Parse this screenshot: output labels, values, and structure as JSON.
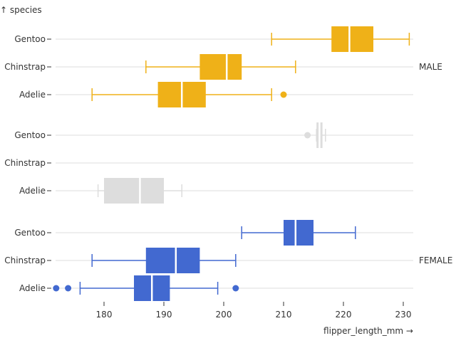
{
  "chart_data": {
    "type": "box",
    "ylabel": "↑ species",
    "xlabel": "flipper_length_mm →",
    "xlim": [
      171,
      231.5
    ],
    "xticks": [
      180,
      190,
      200,
      210,
      220,
      230
    ],
    "grid": true,
    "colors": {
      "MALE": "#efb118",
      "": "#dddddd",
      "FEMALE": "#4269d0"
    },
    "facets": [
      {
        "sex": "MALE",
        "label": "MALE",
        "boxes": [
          {
            "species": "Gentoo",
            "min": 208,
            "q1": 218,
            "median": 221,
            "q3": 225,
            "max": 231,
            "outliers": []
          },
          {
            "species": "Chinstrap",
            "min": 187,
            "q1": 196,
            "median": 200.5,
            "q3": 203,
            "max": 212,
            "outliers": []
          },
          {
            "species": "Adelie",
            "min": 178,
            "q1": 189,
            "median": 193,
            "q3": 197,
            "max": 208,
            "outliers": [
              210
            ]
          }
        ]
      },
      {
        "sex": "",
        "label": "",
        "boxes": [
          {
            "species": "Gentoo",
            "min": 215.5,
            "q1": 215.5,
            "median": 216,
            "q3": 216.5,
            "max": 217,
            "outliers": [
              214
            ]
          },
          {
            "species": "Chinstrap",
            "min": null,
            "q1": null,
            "median": null,
            "q3": null,
            "max": null,
            "outliers": []
          },
          {
            "species": "Adelie",
            "min": 179,
            "q1": 180,
            "median": 186,
            "q3": 190,
            "max": 193,
            "outliers": []
          }
        ]
      },
      {
        "sex": "FEMALE",
        "label": "FEMALE",
        "boxes": [
          {
            "species": "Gentoo",
            "min": 203,
            "q1": 210,
            "median": 212,
            "q3": 215,
            "max": 222,
            "outliers": []
          },
          {
            "species": "Chinstrap",
            "min": 178,
            "q1": 187,
            "median": 192,
            "q3": 196,
            "max": 202,
            "outliers": []
          },
          {
            "species": "Adelie",
            "min": 176,
            "q1": 185,
            "median": 188,
            "q3": 191,
            "max": 199,
            "outliers": [
              172,
              174,
              202
            ]
          }
        ]
      }
    ]
  }
}
